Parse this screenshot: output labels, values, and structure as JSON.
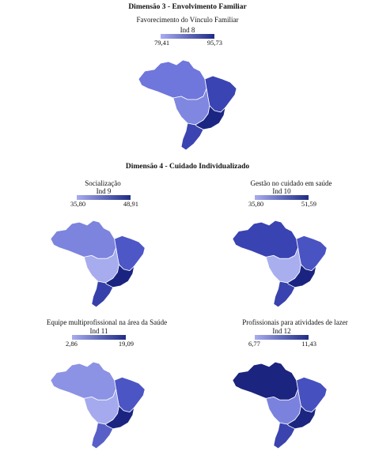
{
  "sections": [
    {
      "title": "Dimensão 3 - Envolvimento Familiar"
    },
    {
      "title": "Dimensão 4 - Cuidado Individualizado"
    }
  ],
  "maps": [
    {
      "subtitle": "Favorecimento do Vínculo Familiar",
      "indicator": "Ind 8",
      "min": "79,41",
      "max": "95,73",
      "regions": {
        "norte": "#6f76dc",
        "nordeste": "#3a44b2",
        "centro_oeste": "#8087e0",
        "sudeste": "#1b2683",
        "sul": "#3b44b0"
      }
    },
    {
      "subtitle": "Socialização",
      "indicator": "Ind 9",
      "min": "35,80",
      "max": "48,91",
      "regions": {
        "norte": "#7d84de",
        "nordeste": "#4e57c6",
        "centro_oeste": "#a7acee",
        "sudeste": "#1a2480",
        "sul": "#3640ab"
      }
    },
    {
      "subtitle": "Gestão no cuidado em saúde",
      "indicator": "Ind 10",
      "min": "35,80",
      "max": "51,59",
      "regions": {
        "norte": "#3a43b2",
        "nordeste": "#4a53c2",
        "centro_oeste": "#a9aeee",
        "sudeste": "#1a2480",
        "sul": "#3942ae"
      }
    },
    {
      "subtitle": "Equipe multiprofissional na área da Saúde",
      "indicator": "Ind 11",
      "min": "2,86",
      "max": "19,09",
      "regions": {
        "norte": "#8c92e4",
        "nordeste": "#4c55c4",
        "centro_oeste": "#a5aaee",
        "sudeste": "#1b2581",
        "sul": "#5860c8"
      }
    },
    {
      "subtitle": "Profissionais para atividades de lazer",
      "indicator": "Ind 12",
      "min": "6,77",
      "max": "11,43",
      "regions": {
        "norte": "#1b247e",
        "nordeste": "#4750bf",
        "centro_oeste": "#7b82dd",
        "sudeste": "#1c2680",
        "sul": "#3a43ae"
      }
    }
  ]
}
